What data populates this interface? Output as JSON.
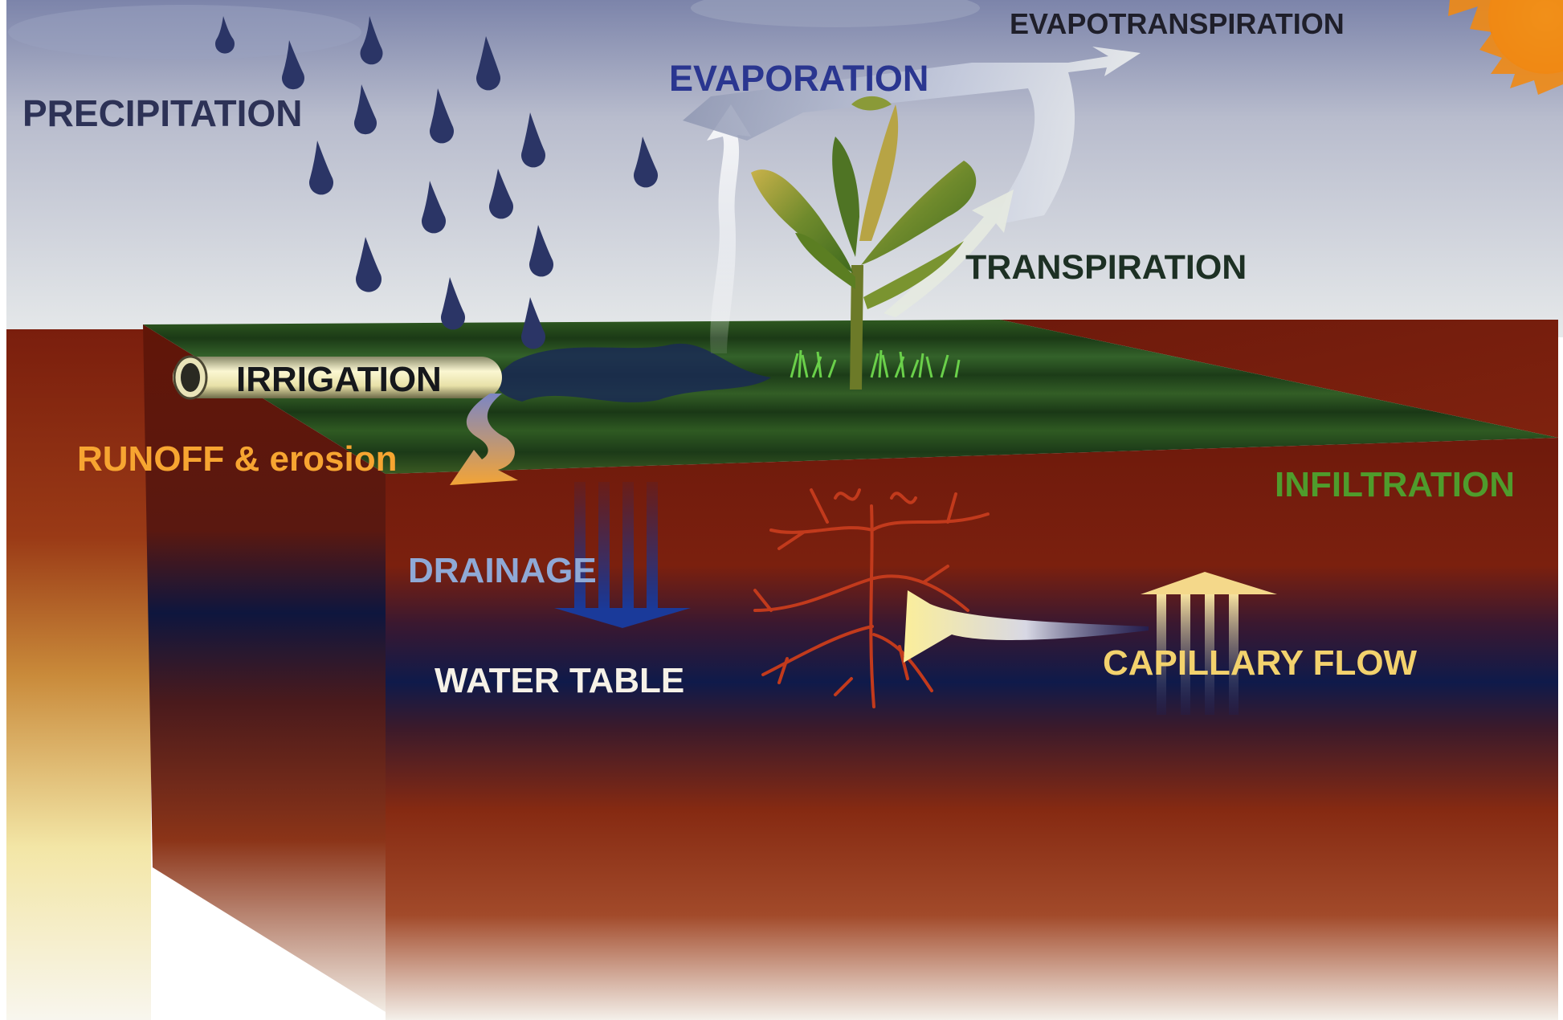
{
  "labels": {
    "precipitation": "PRECIPITATION",
    "evaporation": "EVAPORATION",
    "evapotranspiration": "EVAPOTRANSPIRATION",
    "transpiration": "TRANSPIRATION",
    "irrigation": "IRRIGATION",
    "runoff": "RUNOFF & erosion",
    "infiltration": "INFILTRATION",
    "drainage": "DRAINAGE",
    "water_table": "WATER TABLE",
    "capillary_flow": "CAPILLARY FLOW"
  },
  "colors": {
    "sky_top": "#7f86ab",
    "sky_bottom": "#e4e8ea",
    "soil": "#7a1c0c",
    "grass": "#2f5a22",
    "water_band": "#0d1a4a",
    "precipitation_text": "#2d3256",
    "evaporation_text": "#2a3690",
    "evapotranspiration_text": "#1f1f2a",
    "transpiration_text": "#1d3024",
    "irrigation_text": "#16181c",
    "runoff_text": "#f7a531",
    "infiltration_text": "#4f9c2c",
    "drainage_text": "#8fa9d6",
    "water_table_text": "#f6f2e7",
    "capillary_text": "#f3d26d",
    "raindrop": "#2b3566",
    "sun": "#f5a623"
  }
}
